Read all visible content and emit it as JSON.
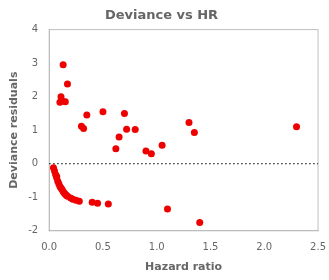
{
  "chart_data": {
    "type": "scatter",
    "title": "Deviance vs HR",
    "xlabel": "Hazard ratio",
    "ylabel": "Deviance residuals",
    "xlim": [
      0,
      2.5
    ],
    "ylim": [
      -2,
      4
    ],
    "xticks": [
      {
        "value": 0,
        "label": "0.0"
      },
      0.5,
      {
        "value": 1,
        "label": "1.0"
      },
      1.5,
      {
        "value": 2,
        "label": "2.0"
      },
      2.5
    ],
    "yticks": [
      -2,
      -1,
      0,
      1,
      2,
      3,
      4
    ],
    "color": "#ee0000",
    "marker": "circle",
    "grid": false,
    "hline": {
      "y": 0,
      "line_style": "dotted",
      "color": "#000000"
    },
    "x": [
      0.04,
      0.05,
      0.06,
      0.07,
      0.07,
      0.08,
      0.09,
      0.1,
      0.11,
      0.12,
      0.13,
      0.14,
      0.15,
      0.16,
      0.17,
      0.1,
      0.11,
      0.12,
      0.13,
      0.15,
      0.17,
      0.2,
      0.22,
      0.25,
      0.28,
      0.3,
      0.32,
      0.35,
      0.4,
      0.45,
      0.5,
      0.55,
      0.62,
      0.65,
      0.7,
      0.72,
      0.8,
      0.9,
      0.95,
      1.05,
      1.1,
      1.3,
      1.35,
      1.4,
      2.3
    ],
    "values": [
      -0.12,
      -0.22,
      -0.32,
      -0.42,
      -0.38,
      -0.52,
      -0.6,
      -0.68,
      -0.72,
      -0.77,
      -0.83,
      -0.87,
      -0.91,
      -0.94,
      -0.97,
      1.83,
      2.0,
      1.88,
      2.95,
      1.85,
      2.38,
      -1.02,
      -1.06,
      -1.09,
      -1.12,
      1.12,
      1.05,
      1.45,
      -1.15,
      -1.18,
      1.55,
      -1.2,
      0.45,
      0.8,
      1.5,
      1.03,
      1.02,
      0.38,
      0.3,
      0.55,
      -1.35,
      1.23,
      0.93,
      -1.75,
      1.1
    ]
  }
}
